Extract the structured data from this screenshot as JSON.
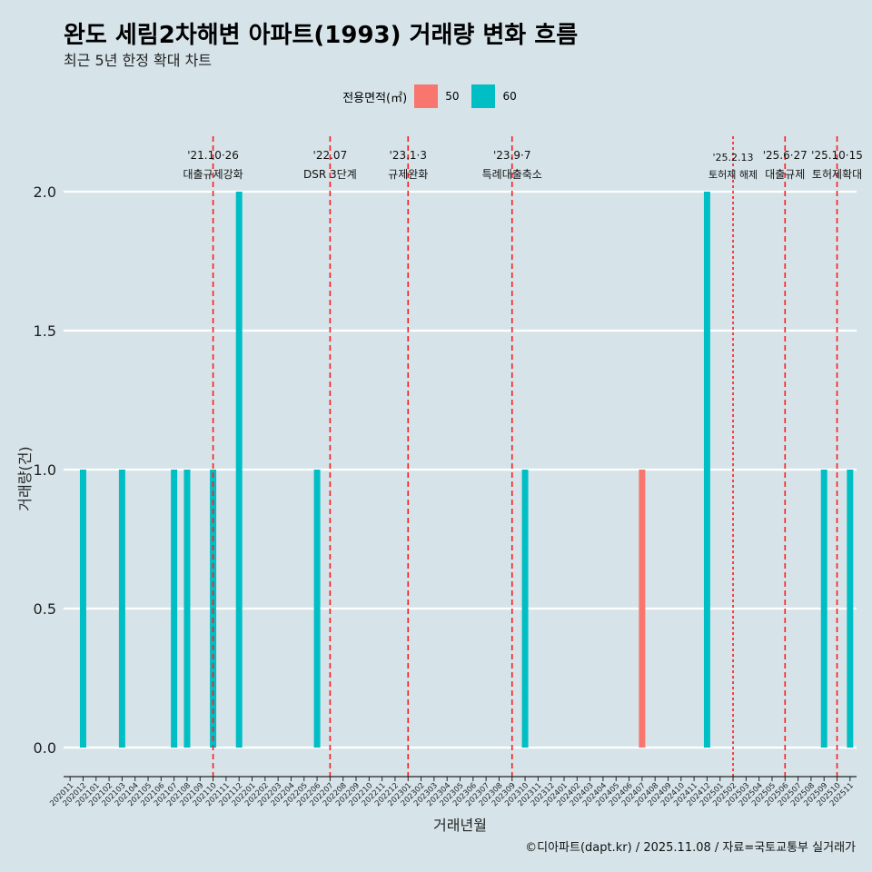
{
  "chart_data": {
    "type": "bar",
    "title": "완도 세림2차해변 아파트(1993) 거래량 변화 흐름",
    "subtitle": "최근 5년 한정 확대 차트",
    "xlabel": "거래년월",
    "ylabel": "거래량(건)",
    "ylim": [
      0,
      2
    ],
    "yticks": [
      0.0,
      0.5,
      1.0,
      1.5,
      2.0
    ],
    "ytick_labels": [
      "0.0",
      "0.5",
      "1.0",
      "1.5",
      "2.0"
    ],
    "legend_title": "전용면적(㎡)",
    "legend_position": "top",
    "categories": [
      "202011",
      "202012",
      "202101",
      "202102",
      "202103",
      "202104",
      "202105",
      "202106",
      "202107",
      "202108",
      "202109",
      "202110",
      "202111",
      "202112",
      "202201",
      "202202",
      "202203",
      "202204",
      "202205",
      "202206",
      "202207",
      "202208",
      "202209",
      "202210",
      "202211",
      "202212",
      "202301",
      "202302",
      "202303",
      "202304",
      "202305",
      "202306",
      "202307",
      "202308",
      "202309",
      "202310",
      "202311",
      "202312",
      "202401",
      "202402",
      "202403",
      "202404",
      "202405",
      "202406",
      "202407",
      "202408",
      "202409",
      "202410",
      "202411",
      "202412",
      "202501",
      "202502",
      "202503",
      "202504",
      "202505",
      "202506",
      "202507",
      "202508",
      "202509",
      "202510",
      "202511"
    ],
    "series": [
      {
        "name": "50",
        "color": "#f8766d",
        "values": [
          0,
          0,
          0,
          0,
          0,
          0,
          0,
          0,
          0,
          0,
          0,
          0,
          0,
          0,
          0,
          0,
          0,
          0,
          0,
          0,
          0,
          0,
          0,
          0,
          0,
          0,
          0,
          0,
          0,
          0,
          0,
          0,
          0,
          0,
          0,
          0,
          0,
          0,
          0,
          0,
          0,
          0,
          0,
          0,
          1,
          0,
          0,
          0,
          0,
          0,
          0,
          0,
          0,
          0,
          0,
          0,
          0,
          0,
          0,
          0,
          0
        ]
      },
      {
        "name": "60",
        "color": "#00bfc4",
        "values": [
          0,
          1,
          0,
          0,
          1,
          0,
          0,
          0,
          1,
          1,
          0,
          1,
          0,
          2,
          0,
          0,
          0,
          0,
          0,
          1,
          0,
          0,
          0,
          0,
          0,
          0,
          0,
          0,
          0,
          0,
          0,
          0,
          0,
          0,
          0,
          1,
          0,
          0,
          0,
          0,
          0,
          0,
          0,
          0,
          0,
          0,
          0,
          0,
          0,
          2,
          0,
          0,
          0,
          0,
          0,
          0,
          0,
          0,
          1,
          0,
          1
        ]
      }
    ],
    "events": [
      {
        "date": "'21.10·26",
        "label": "대출규제강화",
        "month": "202110",
        "style": "dashed"
      },
      {
        "date": "'22.07",
        "label": "DSR 3단계",
        "month": "202207",
        "style": "dashed"
      },
      {
        "date": "'23.1·3",
        "label": "규제완화",
        "month": "202301",
        "style": "dashed"
      },
      {
        "date": "'23.9·7",
        "label": "특례대출축소",
        "month": "202309",
        "style": "dashed"
      },
      {
        "date": "'25.2.13",
        "label": "토허제 해제",
        "month": "202502",
        "style": "dotted"
      },
      {
        "date": "'25.6·27",
        "label": "대출규제",
        "month": "202506",
        "style": "dashed"
      },
      {
        "date": "'25.10·15",
        "label": "토허제확대",
        "month": "202510",
        "style": "dashed"
      }
    ]
  },
  "caption": "©디아파트(dapt.kr) / 2025.11.08 / 자료=국토교통부 실거래가"
}
